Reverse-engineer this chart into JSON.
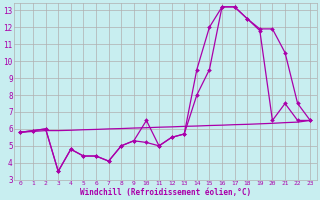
{
  "background_color": "#c8eef0",
  "grid_color": "#b0b0b0",
  "line_color": "#aa00aa",
  "xlabel": "Windchill (Refroidissement éolien,°C)",
  "xlim": [
    -0.5,
    23.5
  ],
  "ylim": [
    3,
    13.4
  ],
  "yticks": [
    3,
    4,
    5,
    6,
    7,
    8,
    9,
    10,
    11,
    12,
    13
  ],
  "xticks": [
    0,
    1,
    2,
    3,
    4,
    5,
    6,
    7,
    8,
    9,
    10,
    11,
    12,
    13,
    14,
    15,
    16,
    17,
    18,
    19,
    20,
    21,
    22,
    23
  ],
  "line1_x": [
    0,
    1,
    2,
    3,
    4,
    5,
    6,
    7,
    8,
    9,
    10,
    11,
    12,
    13,
    14,
    15,
    16,
    17,
    18,
    19,
    20,
    21,
    22,
    23
  ],
  "line1_y": [
    5.8,
    5.9,
    6.0,
    3.5,
    4.8,
    4.4,
    4.4,
    4.1,
    5.0,
    5.3,
    6.5,
    5.0,
    5.5,
    5.7,
    9.5,
    12.0,
    13.2,
    13.2,
    12.5,
    11.8,
    6.5,
    7.5,
    6.5,
    6.5
  ],
  "line2_x": [
    0,
    1,
    2,
    3,
    4,
    5,
    6,
    7,
    8,
    9,
    10,
    11,
    12,
    13,
    14,
    15,
    16,
    17,
    18,
    19,
    20,
    21,
    22,
    23
  ],
  "line2_y": [
    5.8,
    5.9,
    6.0,
    3.5,
    4.8,
    4.4,
    4.4,
    4.1,
    5.0,
    5.3,
    5.2,
    5.0,
    5.5,
    5.7,
    8.0,
    9.5,
    13.2,
    13.2,
    12.5,
    11.9,
    11.9,
    10.5,
    7.5,
    6.5
  ],
  "line3_x": [
    0,
    1,
    2,
    3,
    4,
    5,
    6,
    7,
    8,
    9,
    10,
    11,
    12,
    13,
    14,
    15,
    16,
    17,
    18,
    19,
    20,
    21,
    22,
    23
  ],
  "line3_y": [
    5.8,
    5.85,
    5.9,
    5.9,
    5.92,
    5.95,
    5.97,
    6.0,
    6.02,
    6.05,
    6.07,
    6.1,
    6.12,
    6.15,
    6.17,
    6.2,
    6.22,
    6.25,
    6.27,
    6.3,
    6.33,
    6.37,
    6.4,
    6.5
  ]
}
